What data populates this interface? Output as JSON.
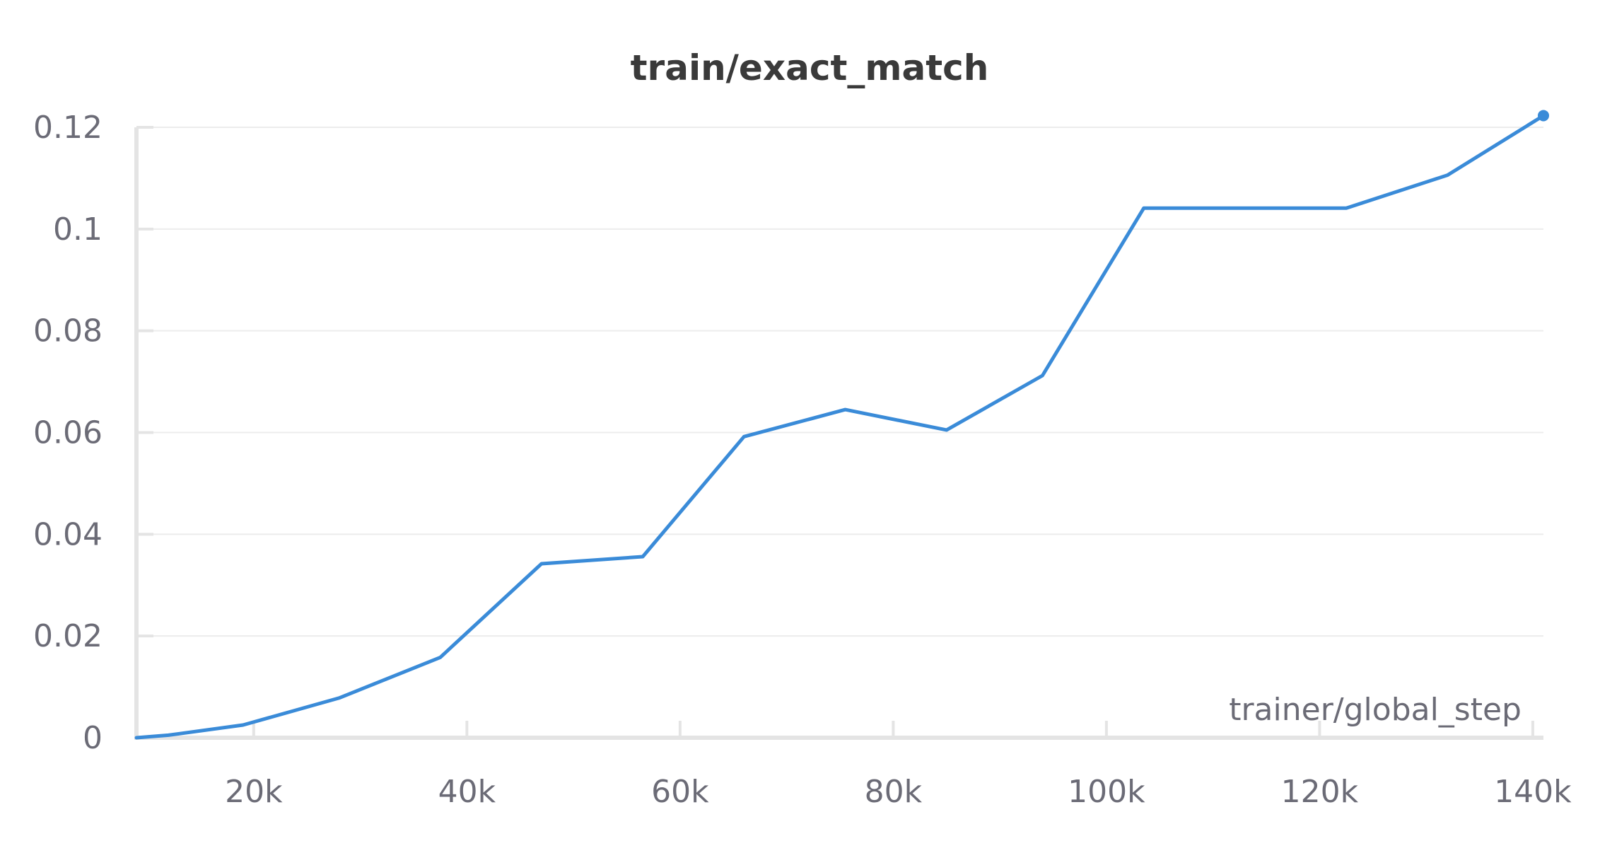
{
  "chart_data": {
    "type": "line",
    "title": "train/exact_match",
    "xlabel": "trainer/global_step",
    "ylabel": "",
    "xlim": [
      9000,
      141000
    ],
    "ylim": [
      0,
      0.12
    ],
    "x_ticks": [
      {
        "value": 20000,
        "label": "20k"
      },
      {
        "value": 40000,
        "label": "40k"
      },
      {
        "value": 60000,
        "label": "60k"
      },
      {
        "value": 80000,
        "label": "80k"
      },
      {
        "value": 100000,
        "label": "100k"
      },
      {
        "value": 120000,
        "label": "120k"
      },
      {
        "value": 140000,
        "label": "140k"
      }
    ],
    "y_ticks": [
      {
        "value": 0,
        "label": "0"
      },
      {
        "value": 0.02,
        "label": "0.02"
      },
      {
        "value": 0.04,
        "label": "0.04"
      },
      {
        "value": 0.06,
        "label": "0.06"
      },
      {
        "value": 0.08,
        "label": "0.08"
      },
      {
        "value": 0.1,
        "label": "0.1"
      },
      {
        "value": 0.12,
        "label": "0.12"
      }
    ],
    "grid": true,
    "legend": "none",
    "series": [
      {
        "color": "#3a8bd8",
        "x": [
          9000,
          12000,
          19000,
          28000,
          37500,
          47000,
          56500,
          66000,
          75500,
          85000,
          94000,
          103500,
          113000,
          122500,
          132000,
          141000
        ],
        "y": [
          0,
          0.0005,
          0.0025,
          0.0078,
          0.0158,
          0.0342,
          0.0356,
          0.0592,
          0.0645,
          0.0605,
          0.0712,
          0.1041,
          0.1041,
          0.1041,
          0.1106,
          0.1223
        ],
        "end_marker": true
      }
    ]
  }
}
